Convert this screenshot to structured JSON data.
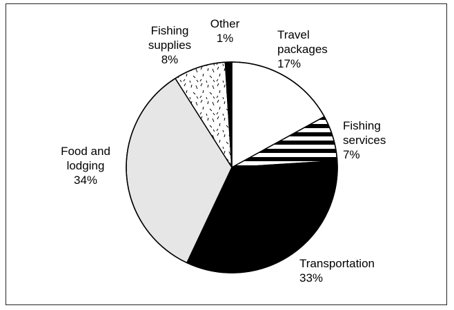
{
  "chart_data": {
    "type": "pie",
    "start_angle_deg": 0,
    "direction": "clockwise",
    "slices": [
      {
        "lines": [
          "Travel",
          "packages"
        ],
        "percent_label": "17%",
        "value": 17,
        "fill": "#ffffff",
        "pattern": "none"
      },
      {
        "lines": [
          "Fishing",
          "services"
        ],
        "percent_label": "7%",
        "value": 7,
        "fill": "#ffffff",
        "pattern": "horizontal-stripes"
      },
      {
        "lines": [
          "Transportation"
        ],
        "percent_label": "33%",
        "value": 33,
        "fill": "#000000",
        "pattern": "none"
      },
      {
        "lines": [
          "Food and",
          "lodging"
        ],
        "percent_label": "34%",
        "value": 34,
        "fill": "#e6e6e6",
        "pattern": "none"
      },
      {
        "lines": [
          "Fishing",
          "supplies"
        ],
        "percent_label": "8%",
        "value": 8,
        "fill": "#ffffff",
        "pattern": "dashes"
      },
      {
        "lines": [
          "Other"
        ],
        "percent_label": "1%",
        "value": 1,
        "fill": "#000000",
        "pattern": "none"
      }
    ],
    "colors": {
      "stroke": "#000000",
      "background": "#ffffff"
    }
  }
}
